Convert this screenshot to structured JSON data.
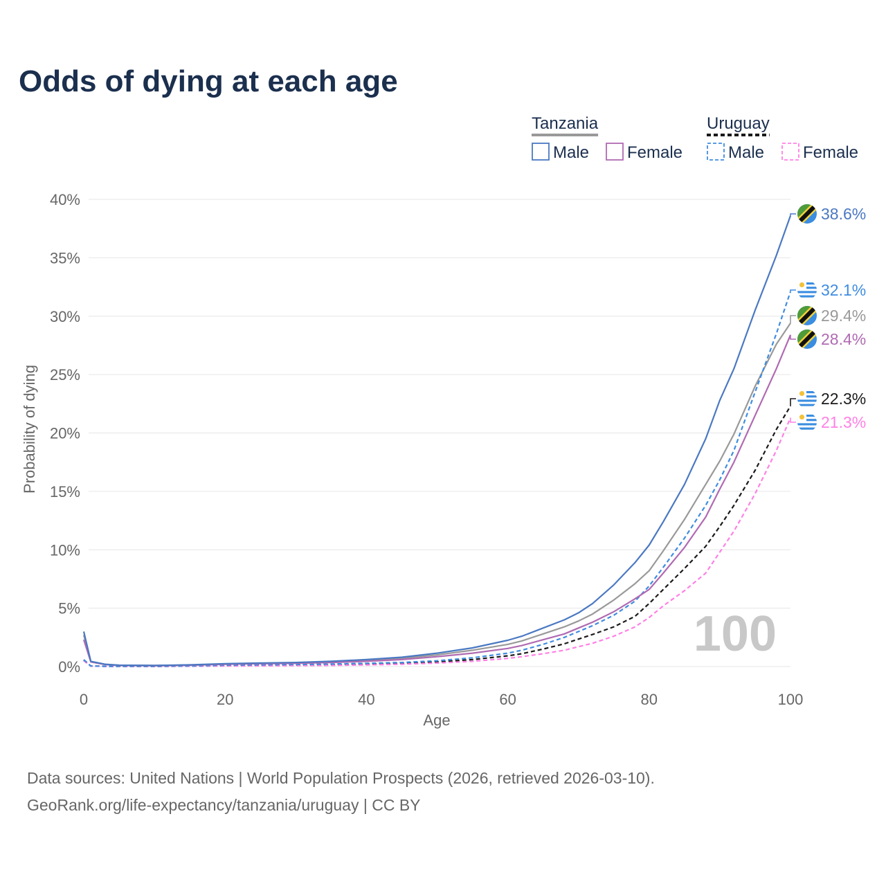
{
  "header": {
    "title": "Odds of dying at each age"
  },
  "legend": {
    "groups": [
      {
        "country": "Tanzania",
        "underline_color": "#999999",
        "dashed": false,
        "items": [
          {
            "label": "Male",
            "color": "#4a78c2"
          },
          {
            "label": "Female",
            "color": "#b06ab3"
          }
        ]
      },
      {
        "country": "Uruguay",
        "underline_color": "#1a1a1a",
        "dashed": true,
        "items": [
          {
            "label": "Male",
            "color": "#3f8ce0"
          },
          {
            "label": "Female",
            "color": "#ff80e6"
          }
        ]
      }
    ]
  },
  "watermark": "100",
  "footer": {
    "source_line": "Data sources: United Nations | World Population Prospects (2026, retrieved 2026-03-10).",
    "credit_line": "GeoRank.org/life-expectancy/tanzania/uruguay | CC BY"
  },
  "chart_data": {
    "type": "line",
    "title": "Odds of dying at each age",
    "xlabel": "Age",
    "ylabel": "Probability of dying",
    "xlim": [
      0,
      100
    ],
    "ylim": [
      0,
      40
    ],
    "x_ticks": [
      0,
      20,
      40,
      60,
      80,
      100
    ],
    "y_ticks": [
      0,
      5,
      10,
      15,
      20,
      25,
      30,
      35,
      40
    ],
    "y_tick_labels": [
      "0%",
      "5%",
      "10%",
      "15%",
      "20%",
      "25%",
      "30%",
      "35%",
      "40%"
    ],
    "grid": true,
    "legend_position": "top-right",
    "series": [
      {
        "name": "Tanzania Male",
        "color": "#4a78c2",
        "dashed": false,
        "end_label": "38.6%",
        "flag": "tanzania",
        "x": [
          0,
          1,
          3,
          5,
          10,
          15,
          20,
          25,
          30,
          35,
          40,
          45,
          50,
          55,
          60,
          62,
          65,
          68,
          70,
          72,
          75,
          78,
          80,
          82,
          85,
          88,
          90,
          92,
          95,
          98,
          100
        ],
        "y": [
          3.0,
          0.45,
          0.2,
          0.12,
          0.1,
          0.15,
          0.25,
          0.3,
          0.35,
          0.45,
          0.6,
          0.8,
          1.15,
          1.6,
          2.25,
          2.6,
          3.3,
          4.0,
          4.6,
          5.4,
          7.0,
          8.9,
          10.4,
          12.4,
          15.6,
          19.5,
          22.8,
          25.5,
          30.5,
          35.2,
          38.6
        ]
      },
      {
        "name": "Tanzania Female",
        "color": "#b06ab3",
        "dashed": false,
        "end_label": "28.4%",
        "flag": "tanzania",
        "x": [
          0,
          1,
          3,
          5,
          10,
          15,
          20,
          25,
          30,
          35,
          40,
          45,
          50,
          55,
          60,
          62,
          65,
          68,
          70,
          72,
          75,
          78,
          80,
          82,
          85,
          88,
          90,
          92,
          95,
          98,
          100
        ],
        "y": [
          2.3,
          0.4,
          0.18,
          0.1,
          0.08,
          0.12,
          0.2,
          0.25,
          0.28,
          0.35,
          0.45,
          0.6,
          0.85,
          1.15,
          1.55,
          1.8,
          2.3,
          2.8,
          3.3,
          3.8,
          4.7,
          5.8,
          6.6,
          8.0,
          10.2,
          12.8,
          15.2,
          17.5,
          21.5,
          25.5,
          28.4
        ]
      },
      {
        "name": "Uruguay Male",
        "color": "#3f8ce0",
        "dashed": true,
        "end_label": "32.1%",
        "flag": "uruguay",
        "x": [
          0,
          1,
          3,
          5,
          10,
          15,
          20,
          25,
          30,
          35,
          40,
          45,
          50,
          55,
          60,
          62,
          65,
          68,
          70,
          72,
          75,
          78,
          80,
          82,
          85,
          88,
          90,
          92,
          95,
          98,
          100
        ],
        "y": [
          0.6,
          0.05,
          0.03,
          0.02,
          0.02,
          0.05,
          0.12,
          0.15,
          0.18,
          0.22,
          0.28,
          0.35,
          0.5,
          0.75,
          1.15,
          1.4,
          1.9,
          2.5,
          3.0,
          3.5,
          4.4,
          5.6,
          6.9,
          8.5,
          11.0,
          13.8,
          16.0,
          18.5,
          23.5,
          28.5,
          32.1
        ]
      },
      {
        "name": "Uruguay Female",
        "color": "#ff80e6",
        "dashed": true,
        "end_label": "21.3%",
        "flag": "uruguay",
        "x": [
          0,
          1,
          3,
          5,
          10,
          15,
          20,
          25,
          30,
          35,
          40,
          45,
          50,
          55,
          60,
          62,
          65,
          68,
          70,
          72,
          75,
          78,
          80,
          82,
          85,
          88,
          90,
          92,
          95,
          98,
          100
        ],
        "y": [
          0.5,
          0.04,
          0.02,
          0.02,
          0.02,
          0.03,
          0.05,
          0.06,
          0.08,
          0.1,
          0.14,
          0.2,
          0.3,
          0.45,
          0.7,
          0.85,
          1.1,
          1.4,
          1.7,
          2.0,
          2.6,
          3.4,
          4.2,
          5.2,
          6.5,
          8.0,
          9.8,
          11.6,
          14.8,
          18.5,
          21.3
        ]
      },
      {
        "name": "Tanzania Total",
        "color": "#999999",
        "dashed": false,
        "end_label": "29.4%",
        "flag": "tanzania",
        "x": [
          0,
          1,
          3,
          5,
          10,
          15,
          20,
          25,
          30,
          35,
          40,
          45,
          50,
          55,
          60,
          62,
          65,
          68,
          70,
          72,
          75,
          78,
          80,
          82,
          85,
          88,
          90,
          92,
          95,
          98,
          100
        ],
        "y": [
          2.7,
          0.42,
          0.19,
          0.11,
          0.09,
          0.13,
          0.22,
          0.27,
          0.31,
          0.4,
          0.52,
          0.7,
          1.0,
          1.4,
          1.9,
          2.2,
          2.8,
          3.4,
          3.9,
          4.5,
          5.7,
          7.1,
          8.2,
          9.9,
          12.6,
          15.6,
          17.6,
          19.9,
          24.0,
          27.6,
          29.4
        ]
      },
      {
        "name": "Uruguay Total",
        "color": "#1a1a1a",
        "dashed": true,
        "end_label": "22.3%",
        "flag": "uruguay",
        "x": [
          0,
          1,
          3,
          5,
          10,
          15,
          20,
          25,
          30,
          35,
          40,
          45,
          50,
          55,
          60,
          62,
          65,
          68,
          70,
          72,
          75,
          78,
          80,
          82,
          85,
          88,
          90,
          92,
          95,
          98,
          100
        ],
        "y": [
          0.55,
          0.045,
          0.025,
          0.02,
          0.02,
          0.04,
          0.09,
          0.11,
          0.13,
          0.16,
          0.21,
          0.28,
          0.4,
          0.6,
          0.92,
          1.1,
          1.5,
          1.95,
          2.35,
          2.75,
          3.4,
          4.3,
          5.4,
          6.6,
          8.4,
          10.3,
          12.0,
          13.8,
          16.8,
          20.3,
          22.3
        ]
      }
    ]
  }
}
